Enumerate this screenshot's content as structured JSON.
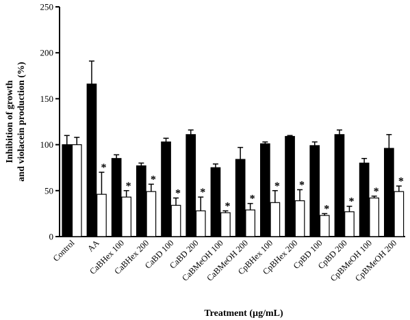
{
  "chart_data": {
    "type": "bar",
    "xlabel": "Treatment (µg/mL)",
    "ylabel_lines": [
      "Inhibition of growth",
      "and violacein production (%)"
    ],
    "ylim": [
      0,
      250
    ],
    "yticks": [
      0,
      50,
      100,
      150,
      200,
      250
    ],
    "tick_labels": [
      "0",
      "50",
      "100",
      "150",
      "200",
      "250"
    ],
    "grid": false,
    "legend": "none",
    "categories": [
      "Control",
      "AA",
      "CaBHex 100",
      "CaBHex 200",
      "CaBD 100",
      "CaBD 200",
      "CaBMeOH 100",
      "CaBMeOH 200",
      "CpBHex 100",
      "CpBHex 200",
      "CpBD 100",
      "CpBD 200",
      "CpBMeOH 100",
      "CpBMeOH 200"
    ],
    "series": [
      {
        "fill": "#000000",
        "values": [
          100,
          166,
          85,
          77,
          103,
          111,
          75,
          84,
          101,
          109,
          99,
          111,
          80,
          96
        ],
        "errors": [
          10,
          25,
          4,
          3,
          4,
          5,
          4,
          13,
          2,
          1,
          4,
          5,
          5,
          15
        ],
        "significant": [
          false,
          false,
          false,
          false,
          false,
          false,
          false,
          false,
          false,
          false,
          false,
          false,
          false,
          false
        ]
      },
      {
        "fill": "#ffffff",
        "values": [
          100,
          46,
          43,
          49,
          34,
          28,
          26,
          29,
          37,
          39,
          23,
          27,
          42,
          49
        ],
        "errors": [
          8,
          24,
          7,
          8,
          8,
          15,
          2,
          7,
          13,
          12,
          2,
          6,
          2,
          6
        ],
        "significant": [
          false,
          true,
          true,
          true,
          true,
          true,
          true,
          true,
          true,
          true,
          true,
          true,
          true,
          true
        ]
      }
    ],
    "significance_marker": "*"
  }
}
